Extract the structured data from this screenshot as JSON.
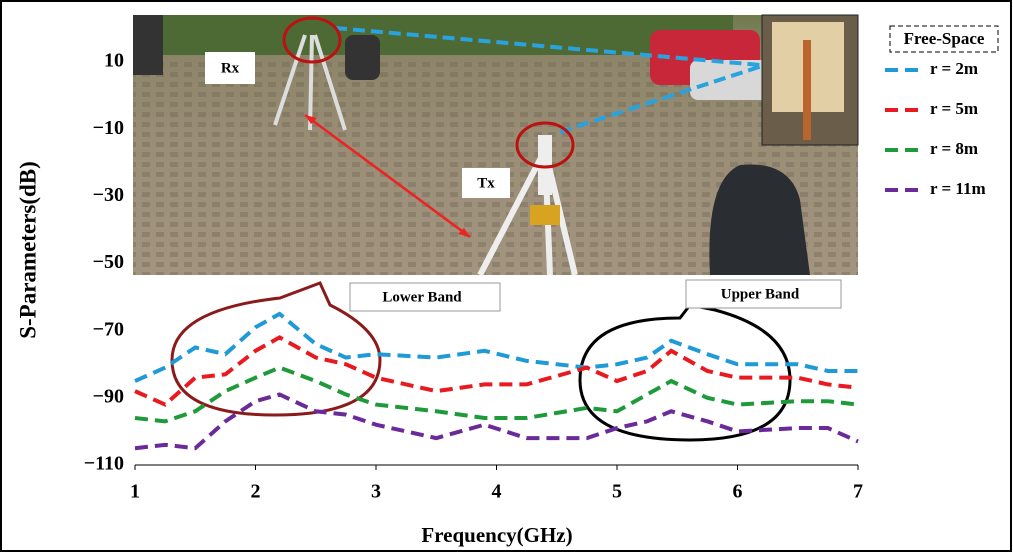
{
  "chart_data": {
    "type": "line",
    "xlabel": "Frequency(GHz)",
    "ylabel": "S-Parameters(dB)",
    "x": [
      1,
      1.25,
      1.5,
      1.75,
      2,
      2.2,
      2.5,
      2.75,
      3,
      3.5,
      3.9,
      4.25,
      4.75,
      5,
      5.25,
      5.45,
      5.75,
      6,
      6.5,
      6.75,
      7
    ],
    "series": [
      {
        "name": "r = 2m",
        "color": "#1f9ad6",
        "values": [
          -85,
          -81,
          -75,
          -77,
          -69,
          -65,
          -74,
          -78,
          -77,
          -78,
          -76,
          -79,
          -81,
          -80,
          -78,
          -73,
          -77,
          -80,
          -80,
          -82,
          -82
        ]
      },
      {
        "name": "r = 5m",
        "color": "#e8191f",
        "values": [
          -88,
          -92,
          -84,
          -83,
          -76,
          -72,
          -78,
          -80,
          -84,
          -88,
          -86,
          -86,
          -81,
          -85,
          -82,
          -76,
          -82,
          -84,
          -84,
          -86,
          -87
        ]
      },
      {
        "name": "r = 8m",
        "color": "#1f9a3a",
        "values": [
          -96,
          -97,
          -94,
          -88,
          -84,
          -81,
          -85,
          -89,
          -92,
          -94,
          -96,
          -96,
          -93,
          -94,
          -89,
          -85,
          -90,
          -92,
          -91,
          -91,
          -92
        ]
      },
      {
        "name": "r = 11m",
        "color": "#6a2a9a",
        "values": [
          -105,
          -104,
          -105,
          -97,
          -91,
          -89,
          -94,
          -95,
          -98,
          -102,
          -98,
          -102,
          -102,
          -99,
          -97,
          -94,
          -97,
          -100,
          -99,
          -99,
          -103
        ]
      }
    ],
    "legend_title": "Free-Space",
    "annotations": [
      "Rx",
      "Tx",
      "Lower Band",
      "Upper Band"
    ],
    "xlim": [
      1,
      7
    ],
    "xticks": [
      1,
      2,
      3,
      4,
      5,
      6,
      7
    ],
    "ylim": [
      -110,
      24
    ],
    "yticks": [
      10,
      {
        "value": -10,
        "label": "−10"
      },
      {
        "value": -30,
        "label": "−30"
      },
      {
        "value": -50,
        "label": "−50"
      },
      {
        "value": -70,
        "label": "−70"
      },
      {
        "value": -90,
        "label": "−90"
      },
      {
        "value": -110,
        "label": "−110"
      }
    ],
    "dashed": true,
    "grid": false
  }
}
